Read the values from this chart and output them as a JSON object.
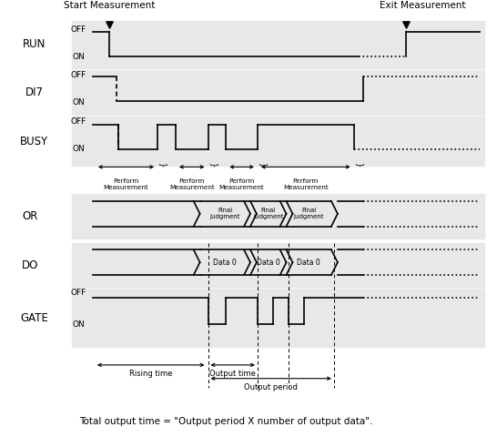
{
  "bg_color": "#e8e8e8",
  "white": "#ffffff",
  "black": "#000000",
  "signal_labels": [
    "RUN",
    "DI7",
    "BUSY",
    "OR",
    "DO",
    "GATE"
  ],
  "footer_text": "Total output time = \"Output period X number of output data\".",
  "start_label": "Start Measurement",
  "exit_label": "Exit Measurement"
}
